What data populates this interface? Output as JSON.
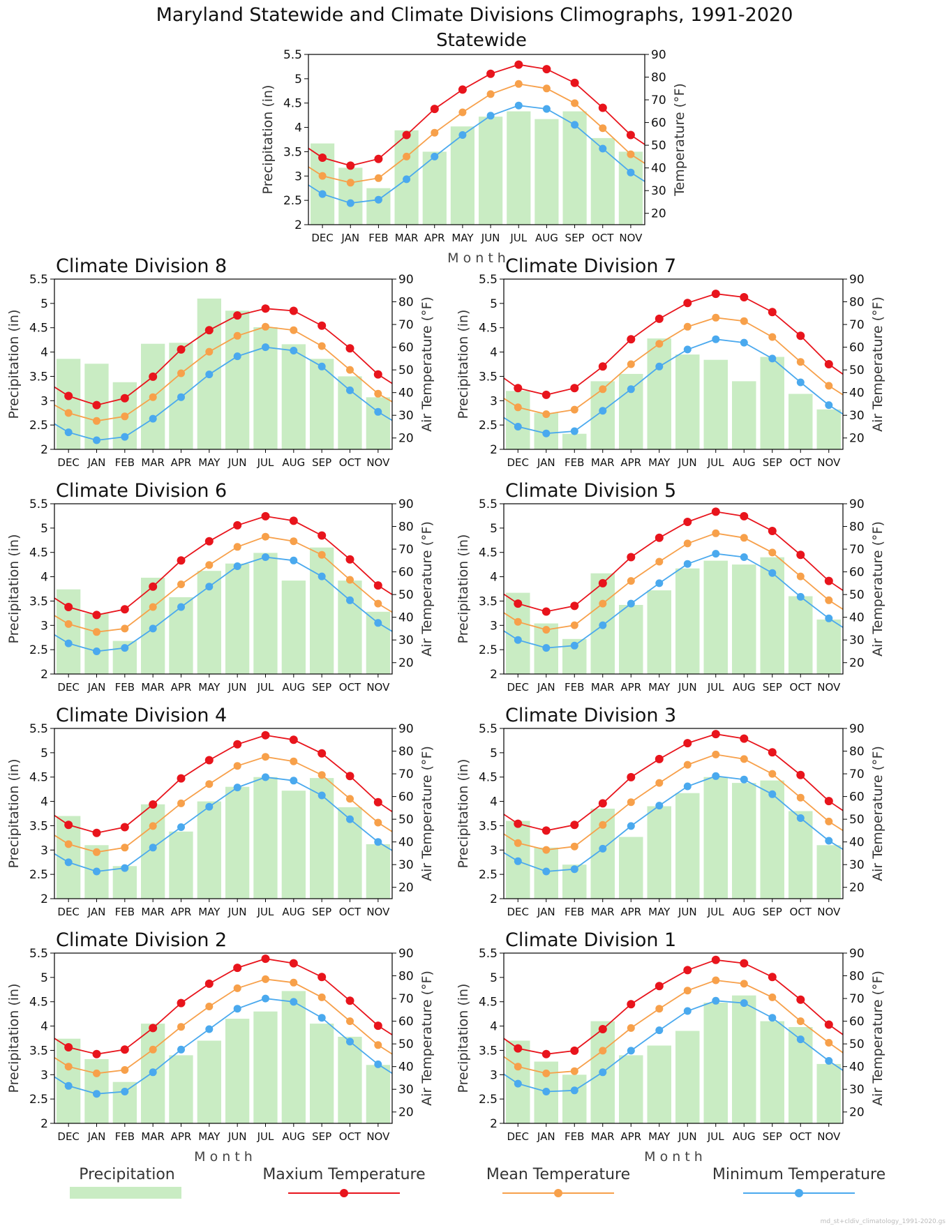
{
  "figure": {
    "title": "Maryland Statewide and Climate Divisions Climographs, 1991-2020",
    "footer": "md_st+cldiv_climatology_1991-2020.gs"
  },
  "axes_text": {
    "precip_label": "Precipitation (in)",
    "temp_label_statewide": "Temperature (°F)",
    "temp_label": "Air Temperature (°F)",
    "month_label": "M o n t h"
  },
  "legend": {
    "precipitation": "Precipitation",
    "max": "Maxium Temperature",
    "mean": "Mean Temperature",
    "min": "Minimum Temperature"
  },
  "colors": {
    "precip": "#c9ecc3",
    "max": "#e8141c",
    "mean": "#f7a04a",
    "min": "#4aa9ee"
  },
  "chart_data": [
    {
      "type": "bar",
      "title": "Statewide",
      "categories": [
        "DEC",
        "JAN",
        "FEB",
        "MAR",
        "APR",
        "MAY",
        "JUN",
        "JUL",
        "AUG",
        "SEP",
        "OCT",
        "NOV"
      ],
      "precip_ylim": [
        2,
        5.5
      ],
      "temp_ylim": [
        15,
        90
      ],
      "precip_ticks": [
        "2",
        "2.5",
        "3",
        "3.5",
        "4",
        "4.5",
        "5",
        "5.5"
      ],
      "temp_ticks": [
        "20",
        "30",
        "40",
        "50",
        "60",
        "70",
        "80",
        "90"
      ],
      "precipitation": [
        3.67,
        3.17,
        2.75,
        3.94,
        3.5,
        4.02,
        4.22,
        4.33,
        4.17,
        4.33,
        3.78,
        3.5
      ],
      "max_temp": [
        44.5,
        41.0,
        44.0,
        54.5,
        66.0,
        74.5,
        81.5,
        85.5,
        83.5,
        77.5,
        66.5,
        54.5
      ],
      "mean_temp": [
        36.5,
        33.5,
        35.5,
        45.0,
        55.5,
        64.5,
        72.5,
        77.0,
        75.0,
        68.5,
        57.5,
        46.0
      ],
      "min_temp": [
        28.5,
        24.5,
        26.0,
        35.0,
        45.0,
        54.5,
        63.0,
        67.5,
        66.0,
        59.0,
        48.5,
        38.0
      ]
    },
    {
      "type": "bar",
      "title": "Climate Division 8",
      "categories": [
        "DEC",
        "JAN",
        "FEB",
        "MAR",
        "APR",
        "MAY",
        "JUN",
        "JUL",
        "AUG",
        "SEP",
        "OCT",
        "NOV"
      ],
      "precip_ylim": [
        2,
        5.5
      ],
      "temp_ylim": [
        15,
        90
      ],
      "precip_ticks": [
        "2",
        "2.5",
        "3",
        "3.5",
        "4",
        "4.5",
        "5",
        "5.5"
      ],
      "temp_ticks": [
        "20",
        "30",
        "40",
        "50",
        "60",
        "70",
        "80",
        "90"
      ],
      "precipitation": [
        3.86,
        3.76,
        3.38,
        4.17,
        4.19,
        5.1,
        4.85,
        4.51,
        4.16,
        3.86,
        3.5,
        3.07
      ],
      "max_temp": [
        38.5,
        34.5,
        37.5,
        47.0,
        59.0,
        67.5,
        74.0,
        77.0,
        76.0,
        69.5,
        59.5,
        48.0
      ],
      "mean_temp": [
        31.0,
        27.5,
        29.5,
        38.0,
        48.5,
        58.0,
        65.0,
        69.0,
        67.5,
        60.5,
        50.0,
        39.5
      ],
      "min_temp": [
        22.5,
        19.0,
        20.5,
        28.5,
        38.0,
        48.0,
        56.0,
        60.0,
        58.5,
        51.5,
        41.0,
        31.5
      ]
    },
    {
      "type": "bar",
      "title": "Climate Division 7",
      "categories": [
        "DEC",
        "JAN",
        "FEB",
        "MAR",
        "APR",
        "MAY",
        "JUN",
        "JUL",
        "AUG",
        "SEP",
        "OCT",
        "NOV"
      ],
      "precip_ylim": [
        2,
        5.5
      ],
      "temp_ylim": [
        15,
        90
      ],
      "precip_ticks": [
        "2",
        "2.5",
        "3",
        "3.5",
        "4",
        "4.5",
        "5",
        "5.5"
      ],
      "temp_ticks": [
        "20",
        "30",
        "40",
        "50",
        "60",
        "70",
        "80",
        "90"
      ],
      "precipitation": [
        3.2,
        2.75,
        2.32,
        3.4,
        3.55,
        4.28,
        3.95,
        3.84,
        3.4,
        3.9,
        3.14,
        2.82
      ],
      "max_temp": [
        42.0,
        39.0,
        42.0,
        51.5,
        63.5,
        72.5,
        79.5,
        83.5,
        82.0,
        75.5,
        65.0,
        52.5
      ],
      "mean_temp": [
        33.5,
        30.5,
        32.5,
        41.5,
        52.5,
        61.5,
        69.0,
        73.0,
        71.5,
        64.5,
        53.5,
        43.0
      ],
      "min_temp": [
        25.0,
        22.0,
        23.0,
        32.0,
        41.5,
        51.5,
        59.0,
        63.5,
        62.0,
        55.0,
        44.5,
        34.5
      ]
    },
    {
      "type": "bar",
      "title": "Climate Division 6",
      "categories": [
        "DEC",
        "JAN",
        "FEB",
        "MAR",
        "APR",
        "MAY",
        "JUN",
        "JUL",
        "AUG",
        "SEP",
        "OCT",
        "NOV"
      ],
      "precip_ylim": [
        2,
        5.5
      ],
      "temp_ylim": [
        15,
        90
      ],
      "precip_ticks": [
        "2",
        "2.5",
        "3",
        "3.5",
        "4",
        "4.5",
        "5",
        "5.5"
      ],
      "temp_ticks": [
        "20",
        "30",
        "40",
        "50",
        "60",
        "70",
        "80",
        "90"
      ],
      "precipitation": [
        3.74,
        3.25,
        2.68,
        3.98,
        3.58,
        4.12,
        4.27,
        4.49,
        3.92,
        4.6,
        3.92,
        3.28
      ],
      "max_temp": [
        44.5,
        41.0,
        43.5,
        53.5,
        65.0,
        73.5,
        80.5,
        84.5,
        82.5,
        76.0,
        65.5,
        54.0
      ],
      "mean_temp": [
        37.0,
        33.5,
        35.0,
        44.5,
        54.5,
        63.0,
        71.0,
        75.5,
        73.5,
        67.5,
        56.5,
        46.0
      ],
      "min_temp": [
        28.5,
        25.0,
        26.5,
        35.0,
        44.5,
        53.5,
        62.5,
        66.5,
        65.0,
        58.0,
        47.5,
        37.5
      ]
    },
    {
      "type": "bar",
      "title": "Climate Division 5",
      "categories": [
        "DEC",
        "JAN",
        "FEB",
        "MAR",
        "APR",
        "MAY",
        "JUN",
        "JUL",
        "AUG",
        "SEP",
        "OCT",
        "NOV"
      ],
      "precip_ylim": [
        2,
        5.5
      ],
      "temp_ylim": [
        15,
        90
      ],
      "precip_ticks": [
        "2",
        "2.5",
        "3",
        "3.5",
        "4",
        "4.5",
        "5",
        "5.5"
      ],
      "temp_ticks": [
        "20",
        "30",
        "40",
        "50",
        "60",
        "70",
        "80",
        "90"
      ],
      "precipitation": [
        3.67,
        3.04,
        2.72,
        4.07,
        3.42,
        3.72,
        4.17,
        4.33,
        4.25,
        4.4,
        3.6,
        3.12
      ],
      "max_temp": [
        46.0,
        42.5,
        45.0,
        55.0,
        66.5,
        75.0,
        82.0,
        86.5,
        84.5,
        78.0,
        67.5,
        56.0
      ],
      "mean_temp": [
        38.0,
        34.5,
        36.5,
        46.0,
        56.0,
        64.5,
        72.5,
        77.0,
        75.0,
        68.5,
        58.0,
        47.5
      ],
      "min_temp": [
        30.0,
        26.5,
        27.5,
        36.5,
        46.0,
        55.0,
        63.5,
        68.0,
        66.5,
        59.5,
        49.0,
        39.5
      ]
    },
    {
      "type": "bar",
      "title": "Climate Division 4",
      "categories": [
        "DEC",
        "JAN",
        "FEB",
        "MAR",
        "APR",
        "MAY",
        "JUN",
        "JUL",
        "AUG",
        "SEP",
        "OCT",
        "NOV"
      ],
      "precip_ylim": [
        2,
        5.5
      ],
      "temp_ylim": [
        15,
        90
      ],
      "precip_ticks": [
        "2",
        "2.5",
        "3",
        "3.5",
        "4",
        "4.5",
        "5",
        "5.5"
      ],
      "temp_ticks": [
        "20",
        "30",
        "40",
        "50",
        "60",
        "70",
        "80",
        "90"
      ],
      "precipitation": [
        3.7,
        3.1,
        2.67,
        3.94,
        3.38,
        4.0,
        4.3,
        4.5,
        4.22,
        4.48,
        3.88,
        3.12
      ],
      "max_temp": [
        47.5,
        44.0,
        46.5,
        56.5,
        68.0,
        76.0,
        83.0,
        87.0,
        85.0,
        79.0,
        69.0,
        57.5
      ],
      "mean_temp": [
        39.0,
        35.5,
        37.5,
        47.0,
        57.0,
        65.5,
        73.5,
        77.5,
        75.5,
        69.5,
        59.0,
        48.5
      ],
      "min_temp": [
        31.0,
        27.0,
        28.5,
        37.5,
        46.5,
        55.5,
        64.0,
        68.5,
        67.0,
        60.5,
        50.0,
        40.0
      ]
    },
    {
      "type": "bar",
      "title": "Climate Division 3",
      "categories": [
        "DEC",
        "JAN",
        "FEB",
        "MAR",
        "APR",
        "MAY",
        "JUN",
        "JUL",
        "AUG",
        "SEP",
        "OCT",
        "NOV"
      ],
      "precip_ylim": [
        2,
        5.5
      ],
      "temp_ylim": [
        15,
        90
      ],
      "precip_ticks": [
        "2",
        "2.5",
        "3",
        "3.5",
        "4",
        "4.5",
        "5",
        "5.5"
      ],
      "temp_ticks": [
        "20",
        "30",
        "40",
        "50",
        "60",
        "70",
        "80",
        "90"
      ],
      "precipitation": [
        3.6,
        3.05,
        2.7,
        3.85,
        3.27,
        3.9,
        4.17,
        4.5,
        4.38,
        4.43,
        3.8,
        3.1
      ],
      "max_temp": [
        48.0,
        45.0,
        47.5,
        57.0,
        68.5,
        76.5,
        83.5,
        87.5,
        85.5,
        79.5,
        69.5,
        58.0
      ],
      "mean_temp": [
        39.5,
        36.5,
        38.0,
        47.5,
        57.5,
        66.0,
        74.0,
        78.5,
        76.5,
        70.0,
        59.5,
        49.0
      ],
      "min_temp": [
        31.5,
        27.0,
        28.0,
        37.0,
        47.0,
        56.0,
        64.5,
        69.0,
        67.5,
        61.0,
        50.5,
        40.5
      ]
    },
    {
      "type": "bar",
      "title": "Climate Division 2",
      "categories": [
        "DEC",
        "JAN",
        "FEB",
        "MAR",
        "APR",
        "MAY",
        "JUN",
        "JUL",
        "AUG",
        "SEP",
        "OCT",
        "NOV"
      ],
      "precip_ylim": [
        2,
        5.5
      ],
      "temp_ylim": [
        15,
        90
      ],
      "precip_ticks": [
        "2",
        "2.5",
        "3",
        "3.5",
        "4",
        "4.5",
        "5",
        "5.5"
      ],
      "temp_ticks": [
        "20",
        "30",
        "40",
        "50",
        "60",
        "70",
        "80",
        "90"
      ],
      "precipitation": [
        3.74,
        3.32,
        2.85,
        4.05,
        3.4,
        3.7,
        4.15,
        4.3,
        4.72,
        4.05,
        3.78,
        3.2
      ],
      "max_temp": [
        48.5,
        45.5,
        47.5,
        57.0,
        68.0,
        76.5,
        83.5,
        87.5,
        85.5,
        79.5,
        69.0,
        58.0
      ],
      "mean_temp": [
        40.0,
        37.0,
        38.5,
        47.5,
        57.5,
        66.5,
        74.5,
        78.5,
        77.0,
        70.5,
        60.0,
        49.5
      ],
      "min_temp": [
        31.5,
        28.0,
        29.0,
        37.5,
        47.5,
        56.5,
        65.5,
        70.0,
        68.5,
        61.5,
        51.0,
        41.0
      ]
    },
    {
      "type": "bar",
      "title": "Climate Division 1",
      "categories": [
        "DEC",
        "JAN",
        "FEB",
        "MAR",
        "APR",
        "MAY",
        "JUN",
        "JUL",
        "AUG",
        "SEP",
        "OCT",
        "NOV"
      ],
      "precip_ylim": [
        2,
        5.5
      ],
      "temp_ylim": [
        15,
        90
      ],
      "precip_ticks": [
        "2",
        "2.5",
        "3",
        "3.5",
        "4",
        "4.5",
        "5",
        "5.5"
      ],
      "temp_ticks": [
        "20",
        "30",
        "40",
        "50",
        "60",
        "70",
        "80",
        "90"
      ],
      "precipitation": [
        3.7,
        3.27,
        3.0,
        4.1,
        3.4,
        3.6,
        3.9,
        4.48,
        4.63,
        4.1,
        3.98,
        3.22
      ],
      "max_temp": [
        48.0,
        45.5,
        47.0,
        56.5,
        67.5,
        75.5,
        82.5,
        87.0,
        85.5,
        79.5,
        69.5,
        58.5
      ],
      "mean_temp": [
        40.0,
        37.0,
        38.0,
        47.0,
        57.0,
        65.5,
        73.5,
        78.0,
        76.5,
        70.5,
        60.0,
        50.5
      ],
      "min_temp": [
        32.5,
        29.0,
        29.5,
        37.5,
        47.0,
        56.0,
        64.5,
        69.0,
        68.0,
        61.5,
        52.0,
        42.5
      ]
    }
  ]
}
